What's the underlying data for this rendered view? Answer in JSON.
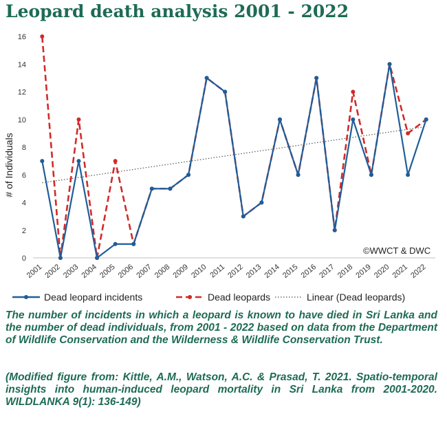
{
  "title": "Leopard death analysis 2001 - 2022",
  "caption": "The number of incidents in which a leopard is known to have died in Sri Lanka and the number of dead individuals, from 2001 - 2022 based on data from the Department of Wildlife Conservation and the Wilderness & Wildlife Conservation Trust.",
  "citation": "(Modified figure from: Kittle, A.M., Watson, A.C. & Prasad, T. 2021. Spatio-temporal insights into human-induced leopard mortality in Sri Lanka from 2001-2020. WILDLANKA 9(1): 136-149)",
  "credit": "©WWCT & DWC",
  "colors": {
    "title": "#1e6b55",
    "incidents": "#1f5d99",
    "dead": "#d12a2a",
    "trend": "#555555"
  },
  "chart_data": {
    "type": "line",
    "title": "",
    "xlabel": "",
    "ylabel": "# of Individuals",
    "ylim": [
      0,
      16
    ],
    "yticks": [
      0,
      2,
      4,
      6,
      8,
      10,
      12,
      14,
      16
    ],
    "grid": false,
    "legend_position": "bottom",
    "categories": [
      "2001",
      "2002",
      "2003",
      "2004",
      "2005",
      "2006",
      "2007",
      "2008",
      "2009",
      "2010",
      "2011",
      "2012",
      "2013",
      "2014",
      "2015",
      "2016",
      "2017",
      "2018",
      "2019",
      "2020",
      "2021",
      "2022"
    ],
    "series": [
      {
        "name": "Dead leopard incidents",
        "style": "solid",
        "color": "#1f5d99",
        "values": [
          7,
          0,
          7,
          0,
          1,
          1,
          5,
          5,
          6,
          13,
          12,
          3,
          4,
          10,
          6,
          13,
          2,
          10,
          6,
          14,
          6,
          10
        ]
      },
      {
        "name": "Dead leopards",
        "style": "dashed",
        "color": "#d12a2a",
        "values": [
          16,
          0,
          10,
          0,
          7,
          1,
          5,
          5,
          6,
          13,
          12,
          3,
          4,
          10,
          6,
          13,
          2,
          12,
          6,
          14,
          9,
          10
        ]
      },
      {
        "name": "Linear (Dead leopards)",
        "style": "dotted",
        "color": "#555555",
        "trendline_of": "Dead leopards"
      }
    ]
  }
}
